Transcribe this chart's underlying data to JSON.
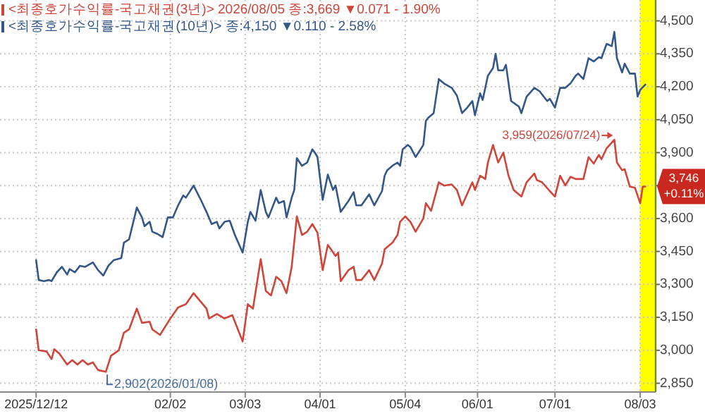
{
  "chart_data": {
    "type": "line",
    "series": [
      {
        "name": "<최종호가수익률-국고채권(3년)> 2026/08/05 종:3,669 ▼0.071 - 1.90%",
        "color": "#d0453a",
        "x": [
          "2025-12-12",
          "2025-12-13",
          "2025-12-16",
          "2025-12-18",
          "2025-12-19",
          "2025-12-21",
          "2025-12-24",
          "2025-12-26",
          "2025-12-28",
          "2025-12-30",
          "2026-01-01",
          "2026-01-03",
          "2026-01-05",
          "2026-01-08",
          "2026-01-10",
          "2026-01-13",
          "2026-01-15",
          "2026-01-17",
          "2026-01-20",
          "2026-01-22",
          "2026-01-25",
          "2026-01-26",
          "2026-01-29",
          "2026-02-02",
          "2026-02-05",
          "2026-02-08",
          "2026-02-11",
          "2026-02-16",
          "2026-02-17",
          "2026-02-20",
          "2026-02-23",
          "2026-02-26",
          "2026-03-02",
          "2026-03-04",
          "2026-03-06",
          "2026-03-09",
          "2026-03-11",
          "2026-03-13",
          "2026-03-15",
          "2026-03-17",
          "2026-03-19",
          "2026-03-21",
          "2026-03-23",
          "2026-03-25",
          "2026-03-27",
          "2026-03-29",
          "2026-03-31",
          "2026-04-02",
          "2026-04-04",
          "2026-04-07",
          "2026-04-08",
          "2026-04-09",
          "2026-04-12",
          "2026-04-14",
          "2026-04-15",
          "2026-04-17",
          "2026-04-20",
          "2026-04-22",
          "2026-04-25",
          "2026-04-26",
          "2026-04-29",
          "2026-05-01",
          "2026-05-02",
          "2026-05-04",
          "2026-05-06",
          "2026-05-08",
          "2026-05-11",
          "2026-05-12",
          "2026-05-14",
          "2026-05-17",
          "2026-05-19",
          "2026-05-22",
          "2026-05-24",
          "2026-05-26",
          "2026-05-30",
          "2026-05-31",
          "2026-06-02",
          "2026-06-04",
          "2026-06-05",
          "2026-06-07",
          "2026-06-09",
          "2026-06-11",
          "2026-06-13",
          "2026-06-15",
          "2026-06-18",
          "2026-06-20",
          "2026-06-23",
          "2026-06-24",
          "2026-06-26",
          "2026-06-29",
          "2026-07-01",
          "2026-07-03",
          "2026-07-05",
          "2026-07-07",
          "2026-07-09",
          "2026-07-12",
          "2026-07-14",
          "2026-07-16",
          "2026-07-18",
          "2026-07-19",
          "2026-07-21",
          "2026-07-24",
          "2026-07-25",
          "2026-07-27",
          "2026-07-28",
          "2026-07-30",
          "2026-08-01",
          "2026-08-03",
          "2026-08-04",
          "2026-08-05"
        ],
        "values": [
          3095,
          3000,
          2995,
          2960,
          3005,
          2985,
          2935,
          2955,
          2935,
          2955,
          2935,
          2945,
          2910,
          2902,
          2975,
          3000,
          3080,
          3095,
          3190,
          3125,
          3130,
          3095,
          3070,
          3145,
          3195,
          3210,
          3260,
          3190,
          3145,
          3165,
          3145,
          3160,
          3040,
          3210,
          3190,
          3415,
          3270,
          3250,
          3335,
          3315,
          3260,
          3380,
          3610,
          3525,
          3540,
          3575,
          3535,
          3365,
          3480,
          3430,
          3445,
          3315,
          3365,
          3380,
          3320,
          3320,
          3365,
          3320,
          3395,
          3460,
          3490,
          3525,
          3585,
          3610,
          3585,
          3540,
          3600,
          3670,
          3635,
          3765,
          3750,
          3755,
          3730,
          3660,
          3765,
          3730,
          3795,
          3780,
          3855,
          3935,
          3855,
          3900,
          3795,
          3730,
          3700,
          3765,
          3805,
          3775,
          3765,
          3725,
          3700,
          3795,
          3750,
          3790,
          3780,
          3780,
          3880,
          3850,
          3890,
          3870,
          3920,
          3959,
          3855,
          3820,
          3825,
          3745,
          3740,
          3670,
          3745,
          3746
        ]
      },
      {
        "name": "<최종호가수익률-국고채권(10년)> 종:4,150 ▼0.110 - 2.58%",
        "color": "#34578a",
        "x": [
          "2025-12-12",
          "2025-12-13",
          "2025-12-15",
          "2025-12-17",
          "2025-12-18",
          "2025-12-20",
          "2025-12-22",
          "2025-12-24",
          "2025-12-25",
          "2025-12-27",
          "2025-12-29",
          "2025-12-31",
          "2026-01-03",
          "2026-01-05",
          "2026-01-07",
          "2026-01-09",
          "2026-01-11",
          "2026-01-14",
          "2026-01-15",
          "2026-01-17",
          "2026-01-20",
          "2026-01-22",
          "2026-01-23",
          "2026-01-25",
          "2026-01-26",
          "2026-01-28",
          "2026-01-30",
          "2026-02-01",
          "2026-02-03",
          "2026-02-05",
          "2026-02-07",
          "2026-02-08",
          "2026-02-11",
          "2026-02-14",
          "2026-02-16",
          "2026-02-18",
          "2026-02-20",
          "2026-02-21",
          "2026-02-23",
          "2026-02-25",
          "2026-02-27",
          "2026-03-02",
          "2026-03-04",
          "2026-03-05",
          "2026-03-07",
          "2026-03-09",
          "2026-03-11",
          "2026-03-12",
          "2026-03-15",
          "2026-03-16",
          "2026-03-18",
          "2026-03-19",
          "2026-03-21",
          "2026-03-22",
          "2026-03-23",
          "2026-03-25",
          "2026-03-27",
          "2026-03-29",
          "2026-03-30",
          "2026-03-31",
          "2026-04-02",
          "2026-04-04",
          "2026-04-06",
          "2026-04-07",
          "2026-04-09",
          "2026-04-12",
          "2026-04-14",
          "2026-04-15",
          "2026-04-17",
          "2026-04-20",
          "2026-04-22",
          "2026-04-25",
          "2026-04-26",
          "2026-04-27",
          "2026-04-29",
          "2026-05-01",
          "2026-05-02",
          "2026-05-03",
          "2026-05-05",
          "2026-05-06",
          "2026-05-08",
          "2026-05-11",
          "2026-05-12",
          "2026-05-13",
          "2026-05-15",
          "2026-05-17",
          "2026-05-19",
          "2026-05-22",
          "2026-05-24",
          "2026-05-26",
          "2026-05-28",
          "2026-05-30",
          "2026-05-31",
          "2026-06-02",
          "2026-06-03",
          "2026-06-05",
          "2026-06-07",
          "2026-06-08",
          "2026-06-09",
          "2026-06-11",
          "2026-06-12",
          "2026-06-14",
          "2026-06-17",
          "2026-06-18",
          "2026-06-20",
          "2026-06-23",
          "2026-06-25",
          "2026-06-26",
          "2026-06-28",
          "2026-06-29",
          "2026-07-01",
          "2026-07-03",
          "2026-07-05",
          "2026-07-07",
          "2026-07-09",
          "2026-07-10",
          "2026-07-12",
          "2026-07-14",
          "2026-07-16",
          "2026-07-18",
          "2026-07-19",
          "2026-07-21",
          "2026-07-23",
          "2026-07-24",
          "2026-07-25",
          "2026-07-27",
          "2026-07-28",
          "2026-07-30",
          "2026-08-01",
          "2026-08-02",
          "2026-08-03",
          "2026-08-05"
        ],
        "values": [
          3410,
          3320,
          3315,
          3320,
          3315,
          3355,
          3380,
          3345,
          3370,
          3355,
          3385,
          3380,
          3400,
          3365,
          3340,
          3385,
          3410,
          3420,
          3490,
          3505,
          3650,
          3605,
          3565,
          3585,
          3540,
          3530,
          3515,
          3605,
          3605,
          3660,
          3705,
          3695,
          3750,
          3680,
          3630,
          3575,
          3585,
          3555,
          3585,
          3590,
          3525,
          3445,
          3585,
          3630,
          3590,
          3730,
          3630,
          3605,
          3695,
          3670,
          3680,
          3605,
          3695,
          3730,
          3875,
          3840,
          3855,
          3915,
          3900,
          3880,
          3685,
          3800,
          3730,
          3750,
          3630,
          3680,
          3720,
          3660,
          3660,
          3710,
          3660,
          3725,
          3795,
          3820,
          3840,
          3855,
          3840,
          3915,
          3935,
          3925,
          3880,
          3935,
          4045,
          4060,
          4080,
          4235,
          4215,
          4195,
          4160,
          4080,
          4105,
          4135,
          4070,
          4170,
          4140,
          4250,
          4285,
          4350,
          4275,
          4275,
          4300,
          4135,
          4110,
          4080,
          4155,
          4195,
          4180,
          4165,
          4135,
          4145,
          4105,
          4195,
          4195,
          4215,
          4250,
          4260,
          4235,
          4330,
          4315,
          4335,
          4330,
          4395,
          4385,
          4450,
          4330,
          4265,
          4305,
          4260,
          4260,
          4155,
          4185,
          4210
        ]
      }
    ],
    "xlim": [
      "2025-11-28",
      "2026-08-09"
    ],
    "xticks": [
      {
        "value": "2025-12-12",
        "label": "2025/12/12"
      },
      {
        "value": "2026-02-02",
        "label": "02/02"
      },
      {
        "value": "2026-03-03",
        "label": "03/03"
      },
      {
        "value": "2026-04-01",
        "label": "04/01"
      },
      {
        "value": "2026-05-04",
        "label": "05/04"
      },
      {
        "value": "2026-06-01",
        "label": "06/01"
      },
      {
        "value": "2026-07-01",
        "label": "07/01"
      },
      {
        "value": "2026-08-03",
        "label": "08/03"
      }
    ],
    "ylim": [
      2810,
      4595
    ],
    "yticks": [
      {
        "value": 2850,
        "label": "2,850"
      },
      {
        "value": 3000,
        "label": "3,000"
      },
      {
        "value": 3150,
        "label": "3,150"
      },
      {
        "value": 3300,
        "label": "3,300"
      },
      {
        "value": 3450,
        "label": "3,450"
      },
      {
        "value": 3600,
        "label": "3,600"
      },
      {
        "value": 3750,
        "label": null
      },
      {
        "value": 3900,
        "label": "3,900"
      },
      {
        "value": 4050,
        "label": "4,050"
      },
      {
        "value": 4200,
        "label": "4,200"
      },
      {
        "value": 4350,
        "label": "4,350"
      },
      {
        "value": 4500,
        "label": "4,500"
      }
    ],
    "grid": true,
    "legend": "top left",
    "bands": [
      {
        "axis": "x",
        "from": "2026-08-03",
        "to": "2026-08-09",
        "color": "#ffff00"
      }
    ],
    "annotations": [
      {
        "text": "2,902(2026/01/08)",
        "x": "2026-01-08",
        "y": 2902
      },
      {
        "text": "3,959(2026/07/24)",
        "x": "2026-07-24",
        "y": 3959
      },
      {
        "text": "3,746\n+0.11%",
        "x": "2026-08-05",
        "y": 3746
      }
    ]
  }
}
